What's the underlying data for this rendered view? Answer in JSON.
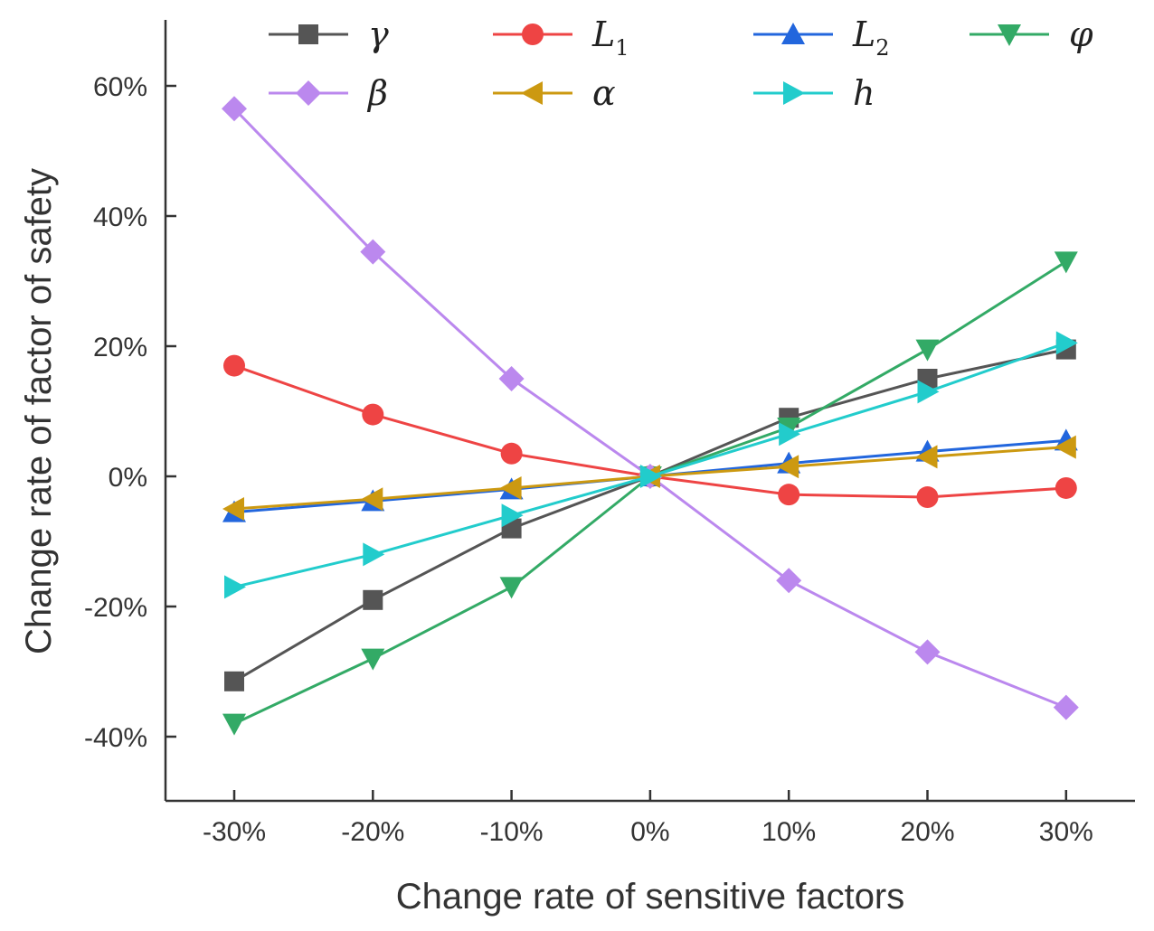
{
  "chart_data": {
    "type": "line",
    "title": "",
    "xlabel": "Change rate of sensitive factors",
    "ylabel": "Change rate of factor of safety",
    "x": [
      -30,
      -20,
      -10,
      0,
      10,
      20,
      30
    ],
    "x_tick_labels": [
      "-30%",
      "-20%",
      "-10%",
      "0%",
      "10%",
      "20%",
      "30%"
    ],
    "y_ticks": [
      -40,
      -20,
      0,
      20,
      40,
      60
    ],
    "y_tick_labels": [
      "-40%",
      "-20%",
      "0%",
      "20%",
      "40%",
      "60%"
    ],
    "ylim": [
      -50,
      70
    ],
    "grid": false,
    "legend_position": "top",
    "series": [
      {
        "name": "γ",
        "sub": "",
        "color": "#555555",
        "marker": "square",
        "values": [
          -31.5,
          -19,
          -8,
          0,
          9,
          15,
          19.5
        ]
      },
      {
        "name": "L",
        "sub": "1",
        "color": "#ee4444",
        "marker": "circle",
        "values": [
          17,
          9.5,
          3.5,
          0,
          -2.8,
          -3.2,
          -1.8
        ]
      },
      {
        "name": "L",
        "sub": "2",
        "color": "#2266dd",
        "marker": "triangle-up",
        "values": [
          -5.5,
          -3.8,
          -2,
          0,
          2,
          3.8,
          5.5
        ]
      },
      {
        "name": "φ",
        "sub": "",
        "color": "#33aa66",
        "marker": "triangle-down",
        "values": [
          -38,
          -28,
          -17,
          0,
          7.5,
          19.5,
          33
        ]
      },
      {
        "name": "β",
        "sub": "",
        "color": "#bb88ee",
        "marker": "diamond",
        "values": [
          56.5,
          34.5,
          15,
          0,
          -16,
          -27,
          -35.5
        ]
      },
      {
        "name": "α",
        "sub": "",
        "color": "#cc9911",
        "marker": "triangle-left",
        "values": [
          -5,
          -3.5,
          -1.8,
          0,
          1.5,
          3,
          4.5
        ]
      },
      {
        "name": "h",
        "sub": "",
        "color": "#22cccc",
        "marker": "triangle-right",
        "values": [
          -17,
          -12,
          -6,
          0,
          6.5,
          13,
          20.5
        ]
      }
    ]
  }
}
